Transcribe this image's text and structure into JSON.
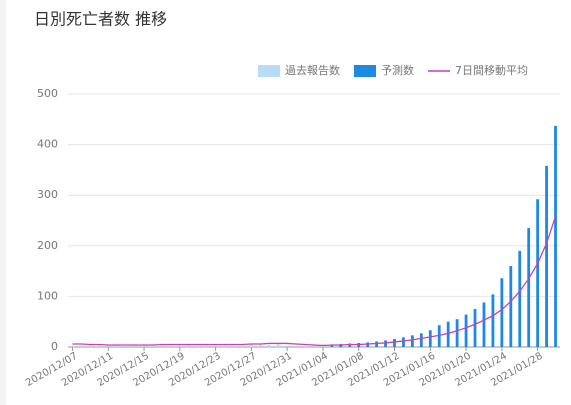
{
  "chart_data": {
    "type": "bar",
    "title": "日別死亡者数 推移",
    "categories": [
      "2020/12/07",
      null,
      null,
      null,
      "2020/12/11",
      null,
      null,
      null,
      "2020/12/15",
      null,
      null,
      null,
      "2020/12/19",
      null,
      null,
      null,
      "2020/12/23",
      null,
      null,
      null,
      "2020/12/27",
      null,
      null,
      null,
      "2020/12/31",
      null,
      null,
      null,
      "2021/01/04",
      null,
      null,
      null,
      "2021/01/08",
      null,
      null,
      null,
      "2021/01/12",
      null,
      null,
      null,
      "2021/01/16",
      null,
      null,
      null,
      "2021/01/20",
      null,
      null,
      null,
      "2021/01/24",
      null,
      null,
      null,
      "2021/01/28",
      null,
      null
    ],
    "series": [
      {
        "name": "過去報告数",
        "type": "bar",
        "color": "#b9dcf6",
        "values": [
          3,
          2,
          4,
          5,
          3,
          4,
          2,
          5,
          3,
          4,
          6,
          3,
          4,
          5,
          3,
          4,
          5,
          6,
          3,
          4,
          5,
          6,
          4,
          5,
          3,
          2,
          3,
          4,
          5,
          null,
          null,
          null,
          null,
          null,
          null,
          null,
          null,
          null,
          null,
          null,
          null,
          null,
          null,
          null,
          null,
          null,
          null,
          null,
          null,
          null,
          null,
          null,
          null,
          null,
          null
        ]
      },
      {
        "name": "予測数",
        "type": "bar",
        "color": "#1e88e5",
        "values": [
          null,
          null,
          null,
          null,
          null,
          null,
          null,
          null,
          null,
          null,
          null,
          null,
          null,
          null,
          null,
          null,
          null,
          null,
          null,
          null,
          null,
          null,
          null,
          null,
          null,
          null,
          null,
          null,
          null,
          5,
          6,
          7,
          8,
          9,
          11,
          13,
          16,
          19,
          23,
          27,
          33,
          43,
          50,
          55,
          64,
          75,
          88,
          104,
          136,
          160,
          190,
          235,
          292,
          358,
          437
        ]
      },
      {
        "name": "7日間移動平均",
        "type": "line",
        "color": "#cc3fb0",
        "values": [
          6,
          6,
          5,
          5,
          4,
          4,
          4,
          4,
          4,
          4,
          5,
          5,
          5,
          5,
          5,
          5,
          5,
          5,
          5,
          5,
          6,
          6,
          7,
          7,
          7,
          6,
          5,
          4,
          3,
          4,
          4,
          5,
          5,
          6,
          7,
          8,
          10,
          12,
          14,
          17,
          20,
          23,
          27,
          32,
          38,
          45,
          53,
          62,
          74,
          90,
          110,
          135,
          165,
          205,
          258
        ]
      }
    ],
    "ylim": [
      0,
      500
    ],
    "yticks": [
      0,
      100,
      200,
      300,
      400,
      500
    ],
    "grid": true
  }
}
